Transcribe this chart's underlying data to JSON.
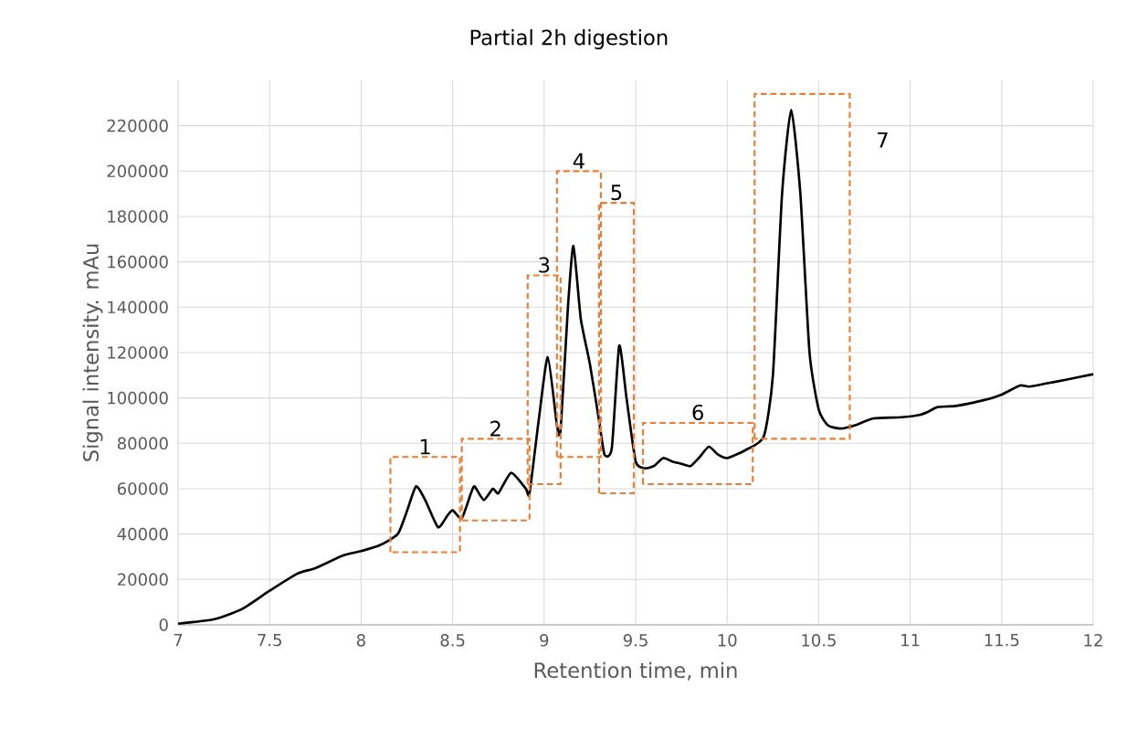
{
  "chart_data": {
    "type": "line",
    "title": "Partial 2h digestion",
    "xlabel": "Retention time, min",
    "ylabel": "Signal intensity. mAu",
    "xlim": [
      7,
      12
    ],
    "xticks": [
      7,
      7.5,
      8,
      8.5,
      9,
      9.5,
      10,
      10.5,
      11,
      11.5,
      12
    ],
    "ylim": [
      0,
      240000
    ],
    "yticks": [
      0,
      20000,
      40000,
      60000,
      80000,
      100000,
      120000,
      140000,
      160000,
      180000,
      200000,
      220000
    ],
    "grid": true,
    "marker": "none",
    "line_style": "solid",
    "series": [
      {
        "color": "#000000",
        "x": [
          7.0,
          7.2,
          7.35,
          7.5,
          7.65,
          7.75,
          7.9,
          8.0,
          8.1,
          8.2,
          8.25,
          8.3,
          8.35,
          8.42,
          8.47,
          8.5,
          8.55,
          8.6,
          8.62,
          8.67,
          8.72,
          8.75,
          8.82,
          8.9,
          8.92,
          8.97,
          9.02,
          9.07,
          9.09,
          9.13,
          9.16,
          9.2,
          9.25,
          9.3,
          9.33,
          9.37,
          9.41,
          9.45,
          9.5,
          9.55,
          9.6,
          9.65,
          9.7,
          9.75,
          9.8,
          9.85,
          9.9,
          9.95,
          10.0,
          10.1,
          10.2,
          10.25,
          10.3,
          10.35,
          10.4,
          10.45,
          10.5,
          10.55,
          10.62,
          10.7,
          10.8,
          10.95,
          11.05,
          11.1,
          11.15,
          11.25,
          11.4,
          11.5,
          11.6,
          11.65,
          11.75,
          11.85,
          12.0
        ],
        "values": [
          500,
          2500,
          7000,
          15000,
          22500,
          25000,
          30500,
          32500,
          35000,
          40000,
          50000,
          61000,
          55000,
          43000,
          48000,
          50500,
          47000,
          58000,
          61000,
          55000,
          60000,
          58000,
          67000,
          60000,
          58000,
          90000,
          118000,
          88000,
          86000,
          140000,
          167000,
          135000,
          115000,
          90000,
          75000,
          78000,
          123000,
          100000,
          72000,
          69000,
          70000,
          73500,
          72000,
          71000,
          70000,
          74000,
          78500,
          75000,
          73500,
          77000,
          83000,
          110000,
          190000,
          227000,
          190000,
          120000,
          95000,
          88000,
          86500,
          88000,
          91000,
          91500,
          92500,
          94000,
          96000,
          96500,
          99000,
          101500,
          105500,
          105000,
          106500,
          108000,
          110500
        ]
      }
    ],
    "annotations": [
      "1",
      "2",
      "3",
      "4",
      "5",
      "6",
      "7"
    ]
  }
}
